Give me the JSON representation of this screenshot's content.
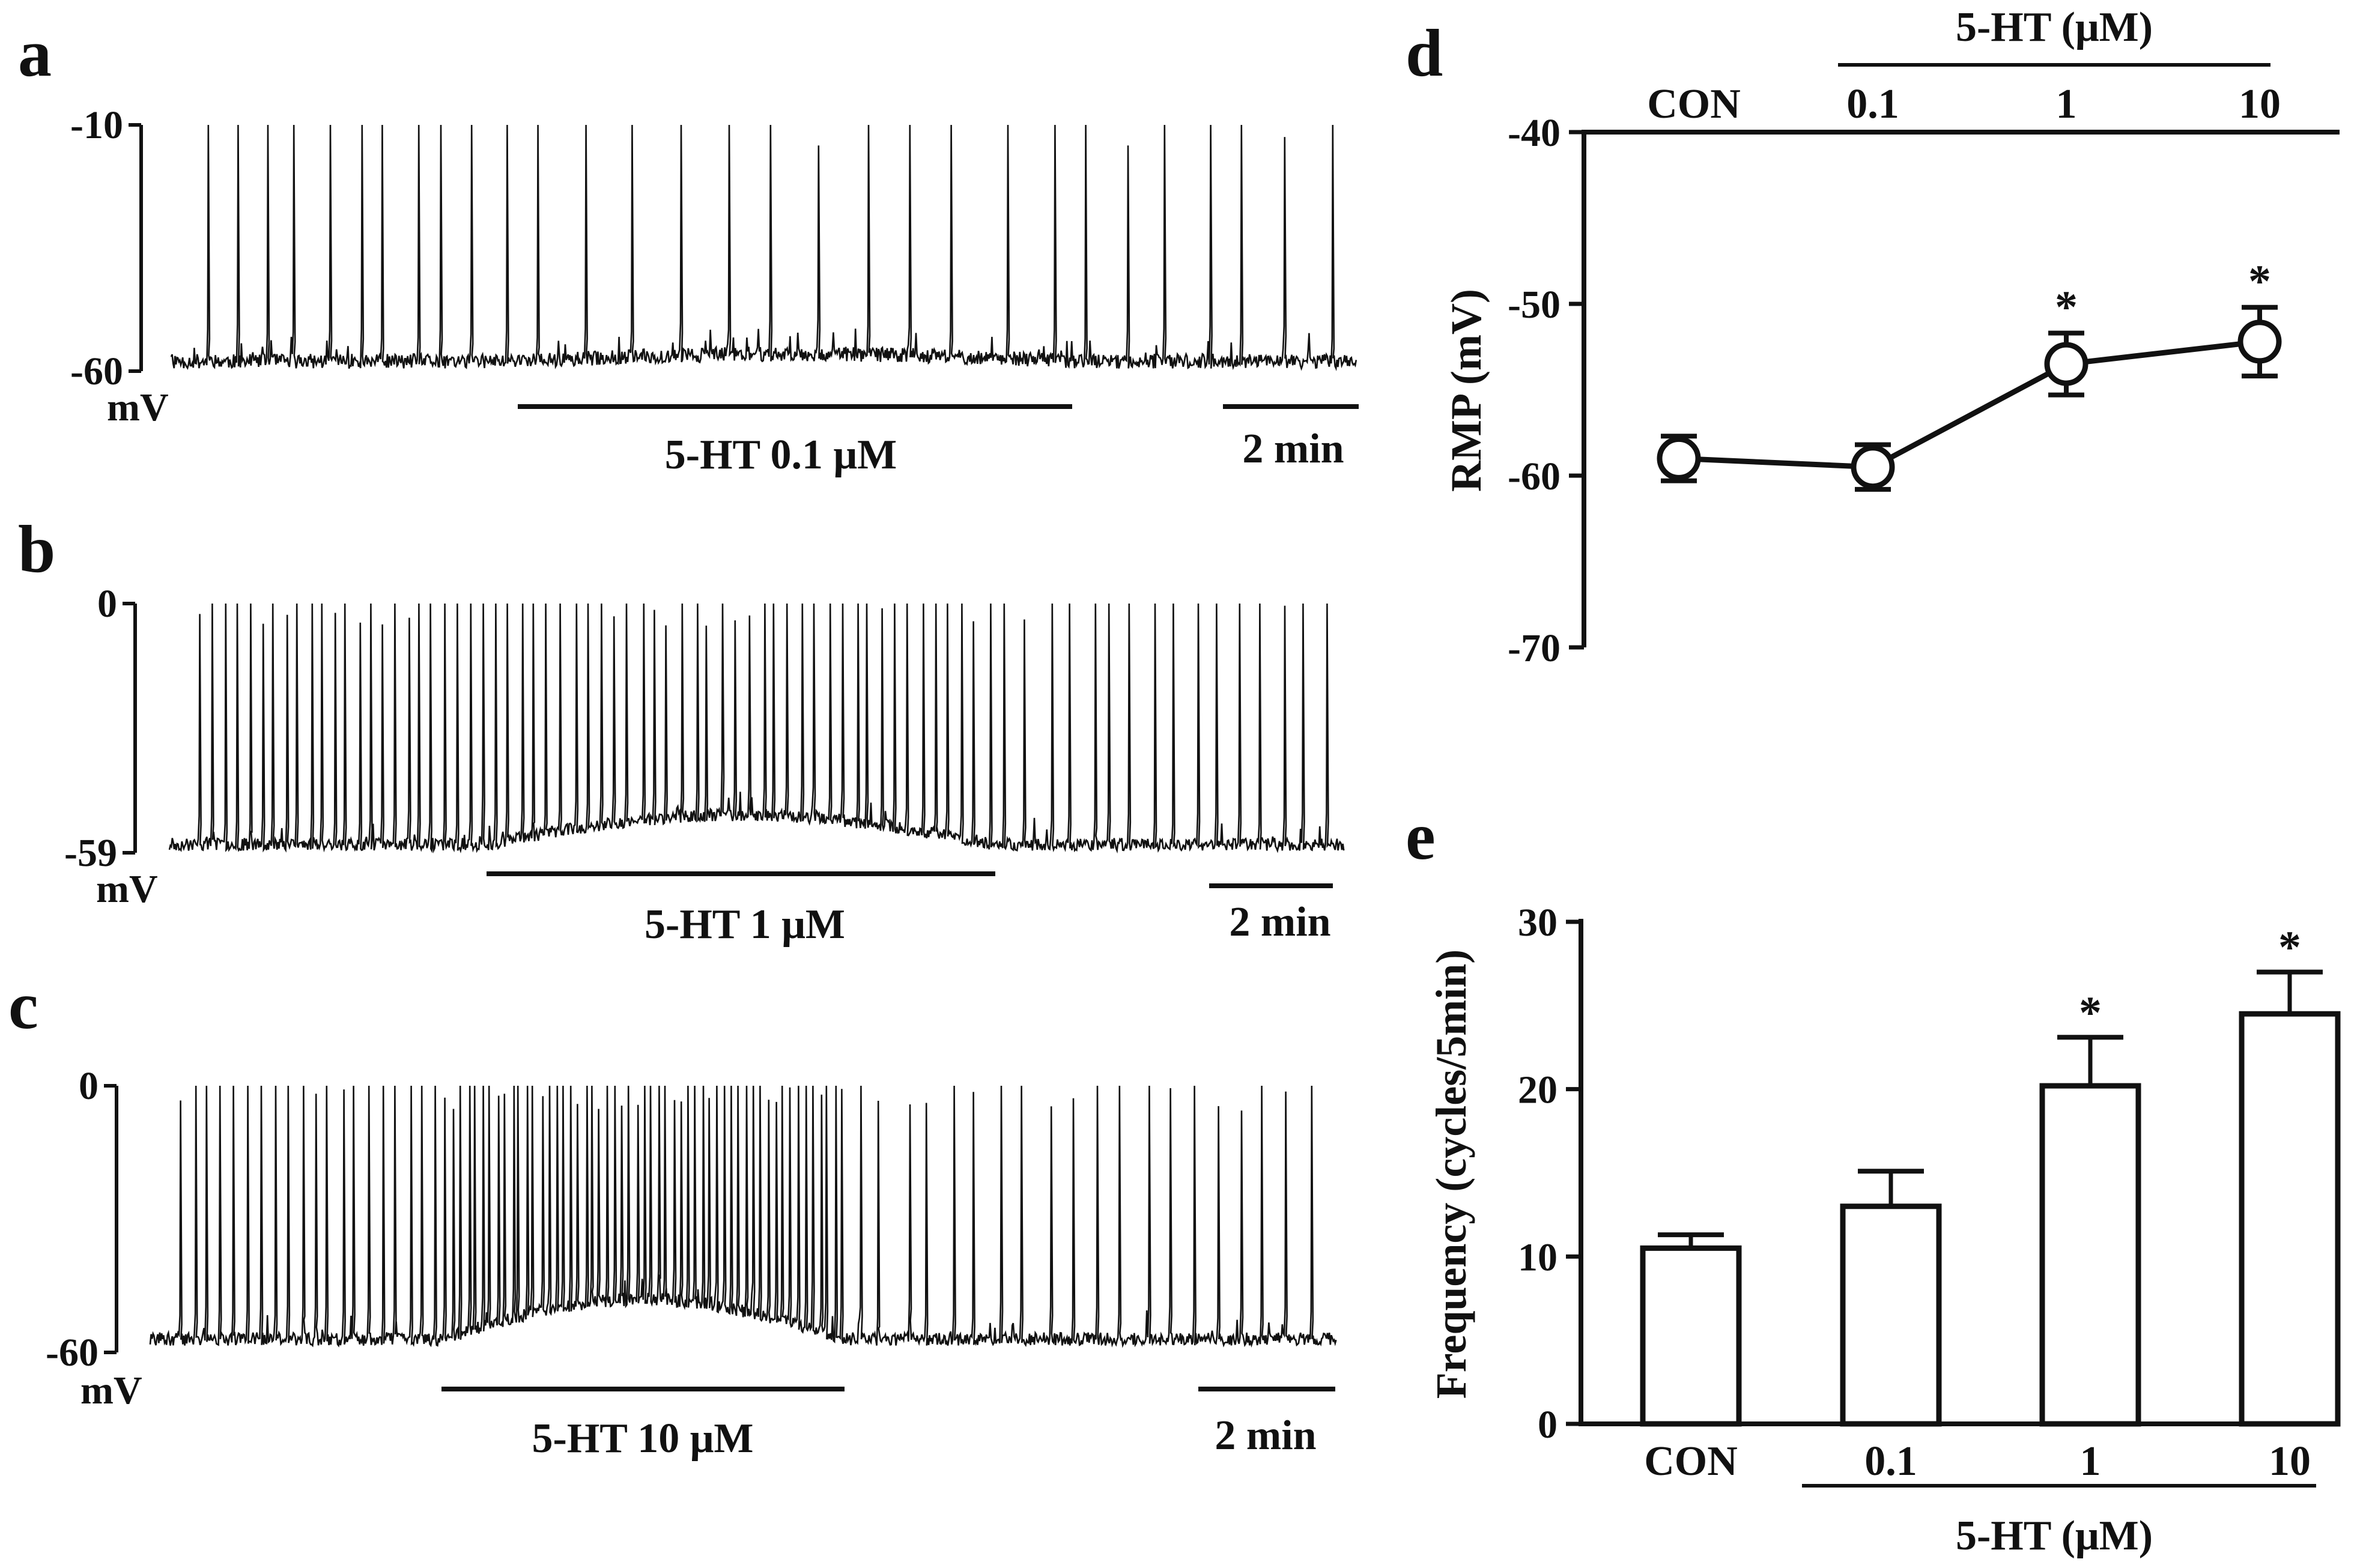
{
  "chart_data": [
    {
      "panel": "a",
      "type": "line",
      "trace": "membrane potential recording",
      "ylabel_top": "-10",
      "ylabel_bottom": "-60",
      "unit": "mV",
      "ylim": [
        -60,
        -10
      ],
      "baseline_mV": -58,
      "spike_peak_mV": -10,
      "spikes_control": 11,
      "spikes_drug": 12,
      "spikes_washout": 7,
      "drug_label": "5-HT 0.1 μM",
      "scale_label": "2 min"
    },
    {
      "panel": "b",
      "type": "line",
      "trace": "membrane potential recording",
      "ylabel_top": "0",
      "ylabel_bottom": "-59",
      "unit": "mV",
      "ylim": [
        -59,
        0
      ],
      "baseline_mV": -57,
      "spike_peak_mV": 0,
      "spikes_control": 24,
      "spikes_drug": 38,
      "spikes_washout": 16,
      "drug_label": "5-HT 1 μM",
      "scale_label": "2 min"
    },
    {
      "panel": "c",
      "type": "line",
      "trace": "membrane potential recording",
      "ylabel_top": "0",
      "ylabel_bottom": "-60",
      "unit": "mV",
      "ylim": [
        -60,
        0
      ],
      "baseline_mV": -57,
      "spike_peak_mV": 0,
      "spikes_control": 20,
      "spikes_drug": 55,
      "spikes_washout": 20,
      "drug_label": "5-HT 10 μM",
      "scale_label": "2 min"
    },
    {
      "panel": "d",
      "type": "line",
      "ylabel": "RMP (mV)",
      "group_label": "5-HT (μM)",
      "categories": [
        "CON",
        "0.1",
        "1",
        "10"
      ],
      "values": [
        -59.0,
        -59.5,
        -53.5,
        -52.2
      ],
      "errors": [
        1.3,
        1.3,
        1.8,
        2.0
      ],
      "significant": [
        false,
        false,
        true,
        true
      ],
      "sig_marker": "*",
      "ylim": [
        -70,
        -40
      ],
      "yticks": [
        "-40",
        "-50",
        "-60",
        "-70"
      ]
    },
    {
      "panel": "e",
      "type": "bar",
      "ylabel": "Frequency (cycles/5min)",
      "group_label": "5-HT (μM)",
      "categories": [
        "CON",
        "0.1",
        "1",
        "10"
      ],
      "values": [
        10.5,
        13.0,
        20.2,
        24.5
      ],
      "errors": [
        0.8,
        2.1,
        2.9,
        2.5
      ],
      "significant": [
        false,
        false,
        true,
        true
      ],
      "sig_marker": "*",
      "ylim": [
        0,
        30
      ],
      "yticks": [
        "0",
        "10",
        "20",
        "30"
      ]
    }
  ]
}
